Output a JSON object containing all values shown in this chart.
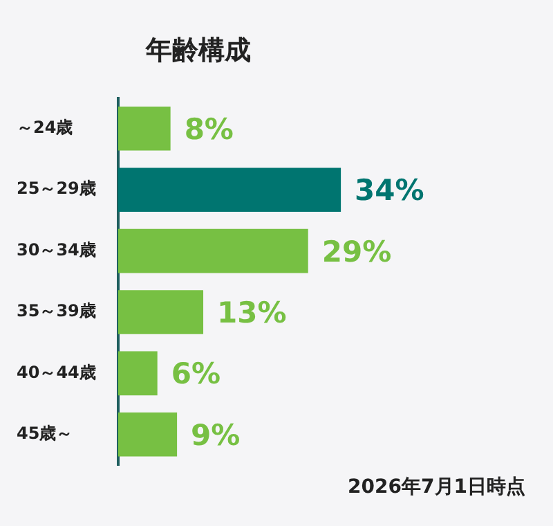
{
  "chart_data": {
    "type": "bar",
    "orientation": "horizontal",
    "title": "年齢構成",
    "categories": [
      "～24歳",
      "25～29歳",
      "30～34歳",
      "35～39歳",
      "40～44歳",
      "45歳～"
    ],
    "values": [
      8,
      34,
      29,
      13,
      6,
      9
    ],
    "colors": [
      "#77c043",
      "#007570",
      "#77c043",
      "#77c043",
      "#77c043",
      "#77c043"
    ],
    "value_labels": [
      "8%",
      "34%",
      "29%",
      "13%",
      "6%",
      "9%"
    ],
    "tick_labels": "y",
    "annotations": [
      "2026年7月1日時点"
    ]
  }
}
